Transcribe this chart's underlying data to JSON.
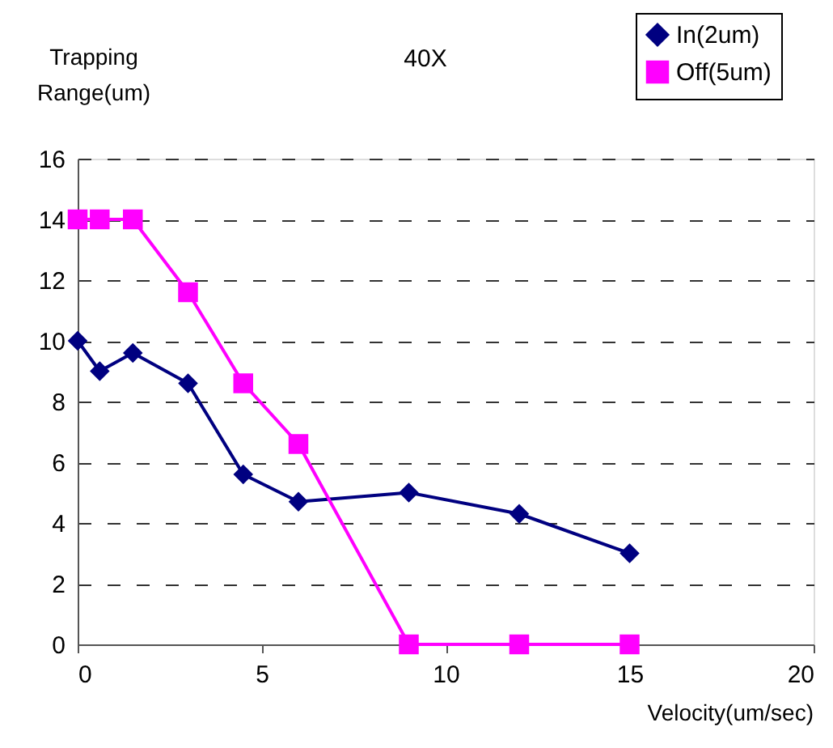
{
  "chart_data": {
    "type": "line",
    "title": "40X",
    "xlabel": "Velocity(um/sec)",
    "ylabel": "Trapping Range(um)",
    "xlim": [
      0,
      20
    ],
    "xticks": [
      0,
      5,
      10,
      15,
      20
    ],
    "ylim": [
      0,
      16
    ],
    "yticks": [
      0,
      2,
      4,
      6,
      8,
      10,
      12,
      14,
      16
    ],
    "grid": "y",
    "legend": "top right",
    "line_style": "solid",
    "series": [
      {
        "name": "In(2um)",
        "color": "#000080",
        "marker": "diamond",
        "x": [
          0,
          0.6,
          1.5,
          3,
          4.5,
          6,
          9,
          12,
          15
        ],
        "values": [
          10,
          9,
          9.6,
          8.6,
          5.6,
          4.7,
          5,
          4.3,
          3
        ]
      },
      {
        "name": "Off(5um)",
        "color": "#ff00ff",
        "marker": "square",
        "x": [
          0,
          0.6,
          1.5,
          3,
          4.5,
          6,
          9,
          12,
          15
        ],
        "values": [
          14,
          14,
          14,
          11.6,
          8.6,
          6.6,
          0,
          0,
          0
        ]
      }
    ]
  }
}
